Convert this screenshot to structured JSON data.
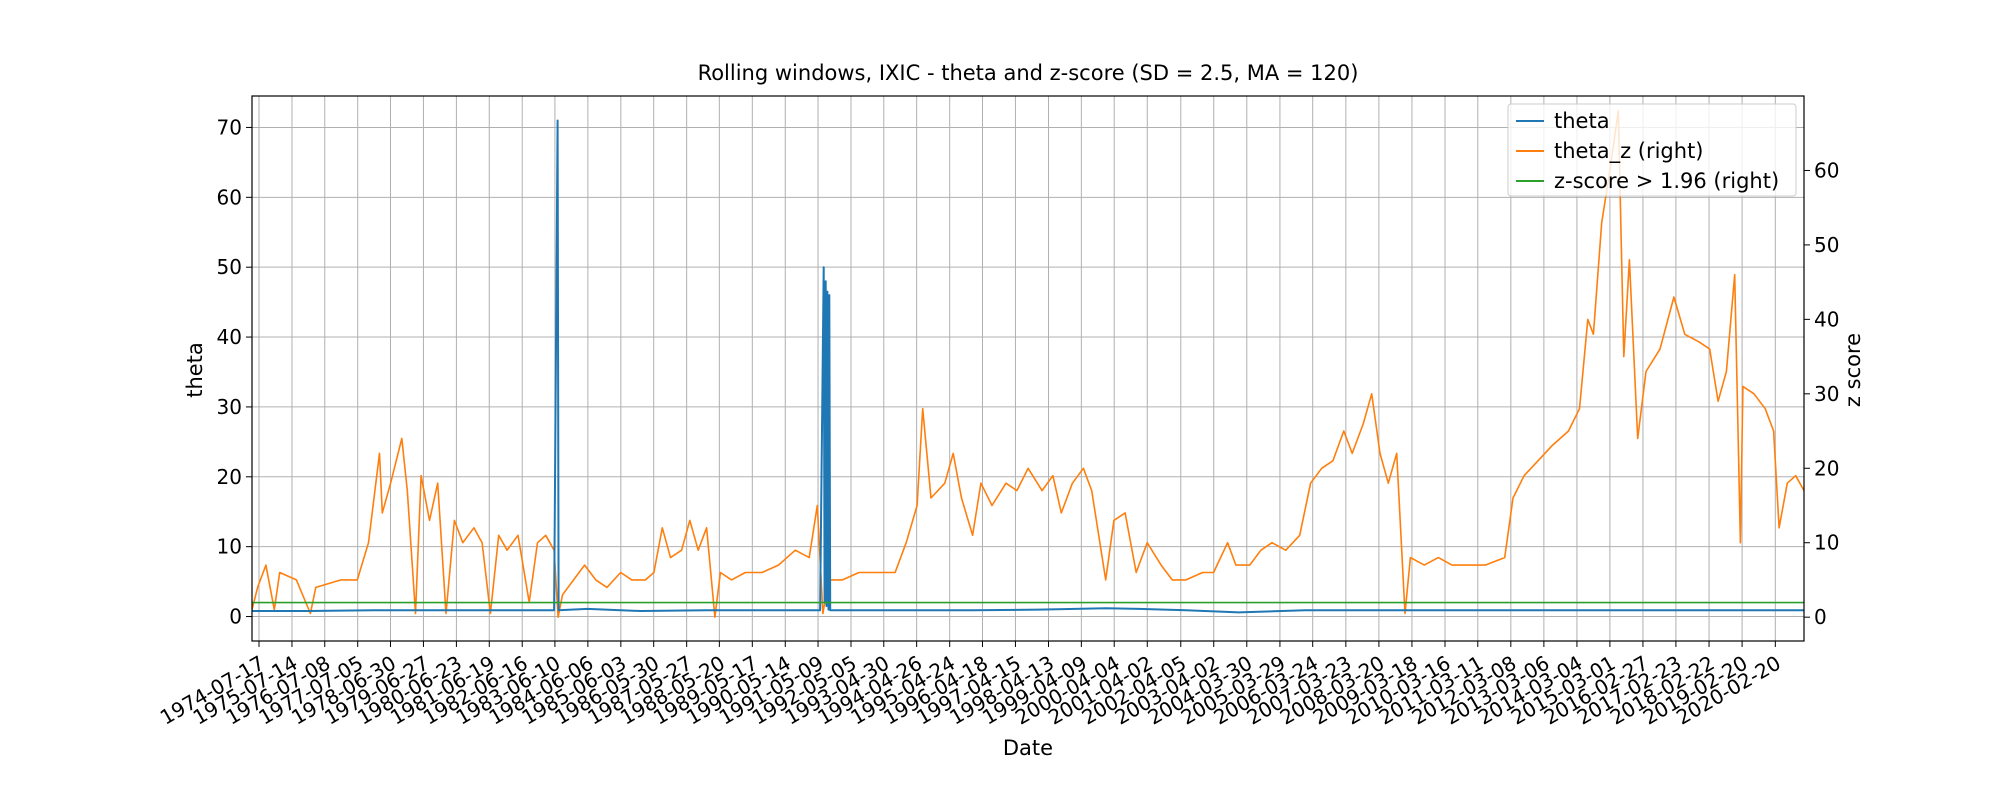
{
  "chart_data": {
    "type": "line",
    "title": "Rolling windows, IXIC - theta and z-score (SD = 2.5, MA = 120)",
    "xlabel": "Date",
    "ylabel": "theta",
    "y2label": "z score",
    "x_range": [
      "1974-05-01",
      "2020-12-31"
    ],
    "ylim": [
      -3.5,
      74.5
    ],
    "y2lim": [
      -3.2,
      70.0
    ],
    "yticks": [
      0,
      10,
      20,
      30,
      40,
      50,
      60,
      70
    ],
    "y2ticks": [
      0,
      10,
      20,
      30,
      40,
      50,
      60
    ],
    "xticks": [
      "1974-07-17",
      "1975-07-14",
      "1976-07-08",
      "1977-07-05",
      "1978-06-30",
      "1979-06-27",
      "1980-06-23",
      "1981-06-19",
      "1982-06-16",
      "1983-06-10",
      "1984-06-06",
      "1985-06-03",
      "1986-05-30",
      "1987-05-27",
      "1988-05-20",
      "1989-05-17",
      "1990-05-14",
      "1991-05-09",
      "1992-05-05",
      "1993-04-30",
      "1994-04-26",
      "1995-04-24",
      "1996-04-18",
      "1997-04-15",
      "1998-04-13",
      "1999-04-09",
      "2000-04-04",
      "2001-04-02",
      "2002-04-05",
      "2003-04-02",
      "2004-03-30",
      "2005-03-29",
      "2006-03-24",
      "2007-03-23",
      "2008-03-20",
      "2009-03-18",
      "2010-03-16",
      "2011-03-11",
      "2012-03-08",
      "2013-03-06",
      "2014-03-04",
      "2015-03-01",
      "2016-02-27",
      "2017-02-23",
      "2018-02-22",
      "2019-02-20",
      "2020-02-20"
    ],
    "grid": true,
    "legend_position": "top-right",
    "series": [
      {
        "name": "theta",
        "axis": "left",
        "color": "#1f77b4",
        "points": [
          [
            "1974-05-01",
            0.8
          ],
          [
            "1976-01-01",
            0.8
          ],
          [
            "1978-01-01",
            0.9
          ],
          [
            "1980-01-01",
            0.9
          ],
          [
            "1982-06-01",
            0.9
          ],
          [
            "1983-06-01",
            0.9
          ],
          [
            "1983-07-10",
            71.0
          ],
          [
            "1983-07-20",
            0.9
          ],
          [
            "1984-06-01",
            1.1
          ],
          [
            "1986-01-01",
            0.8
          ],
          [
            "1988-01-01",
            0.9
          ],
          [
            "1990-06-01",
            0.9
          ],
          [
            "1991-06-01",
            0.9
          ],
          [
            "1991-07-10",
            50.0
          ],
          [
            "1991-07-20",
            2.0
          ],
          [
            "1991-08-01",
            48.0
          ],
          [
            "1991-08-10",
            1.5
          ],
          [
            "1991-08-20",
            46.5
          ],
          [
            "1991-09-01",
            1.0
          ],
          [
            "1991-09-10",
            46.0
          ],
          [
            "1991-09-20",
            0.9
          ],
          [
            "1994-01-01",
            0.9
          ],
          [
            "1996-01-01",
            0.9
          ],
          [
            "1998-01-01",
            1.0
          ],
          [
            "2000-01-01",
            1.2
          ],
          [
            "2001-01-01",
            1.1
          ],
          [
            "2002-06-01",
            0.9
          ],
          [
            "2004-01-01",
            0.6
          ],
          [
            "2006-01-01",
            0.9
          ],
          [
            "2008-01-01",
            0.9
          ],
          [
            "2010-01-01",
            0.9
          ],
          [
            "2014-01-01",
            0.9
          ],
          [
            "2017-01-01",
            0.9
          ],
          [
            "2020-12-31",
            0.9
          ]
        ]
      },
      {
        "name": "theta_z (right)",
        "axis": "right",
        "color": "#ff7f0e",
        "points": [
          [
            "1974-05-01",
            1
          ],
          [
            "1974-07-01",
            4
          ],
          [
            "1974-10-01",
            7
          ],
          [
            "1975-01-01",
            1
          ],
          [
            "1975-03-01",
            6
          ],
          [
            "1975-09-01",
            5
          ],
          [
            "1976-02-01",
            0.5
          ],
          [
            "1976-04-01",
            4
          ],
          [
            "1977-01-01",
            5
          ],
          [
            "1977-07-01",
            5
          ],
          [
            "1977-11-01",
            10
          ],
          [
            "1978-03-01",
            22
          ],
          [
            "1978-04-01",
            14
          ],
          [
            "1978-07-01",
            18
          ],
          [
            "1978-11-01",
            24
          ],
          [
            "1979-01-01",
            17
          ],
          [
            "1979-04-01",
            0.5
          ],
          [
            "1979-06-01",
            19
          ],
          [
            "1979-09-01",
            13
          ],
          [
            "1979-12-01",
            18
          ],
          [
            "1980-03-01",
            0.5
          ],
          [
            "1980-06-01",
            13
          ],
          [
            "1980-09-01",
            10
          ],
          [
            "1981-01-01",
            12
          ],
          [
            "1981-04-01",
            10
          ],
          [
            "1981-07-01",
            0.5
          ],
          [
            "1981-10-01",
            11
          ],
          [
            "1982-01-01",
            9
          ],
          [
            "1982-05-01",
            11
          ],
          [
            "1982-09-01",
            2
          ],
          [
            "1982-12-01",
            10
          ],
          [
            "1983-03-01",
            11
          ],
          [
            "1983-06-01",
            9
          ],
          [
            "1983-07-15",
            0
          ],
          [
            "1983-09-01",
            3
          ],
          [
            "1984-01-01",
            5
          ],
          [
            "1984-05-01",
            7
          ],
          [
            "1984-09-01",
            5
          ],
          [
            "1985-01-01",
            4
          ],
          [
            "1985-06-01",
            6
          ],
          [
            "1985-10-01",
            5
          ],
          [
            "1986-03-01",
            5
          ],
          [
            "1986-06-01",
            6
          ],
          [
            "1986-09-01",
            12
          ],
          [
            "1986-12-01",
            8
          ],
          [
            "1987-04-01",
            9
          ],
          [
            "1987-07-01",
            13
          ],
          [
            "1987-10-01",
            9
          ],
          [
            "1988-01-01",
            12
          ],
          [
            "1988-04-01",
            0
          ],
          [
            "1988-06-01",
            6
          ],
          [
            "1988-10-01",
            5
          ],
          [
            "1989-03-01",
            6
          ],
          [
            "1989-09-01",
            6
          ],
          [
            "1990-03-01",
            7
          ],
          [
            "1990-09-01",
            9
          ],
          [
            "1991-02-01",
            8
          ],
          [
            "1991-05-01",
            15
          ],
          [
            "1991-07-01",
            0.5
          ],
          [
            "1991-09-01",
            5
          ],
          [
            "1992-02-01",
            5
          ],
          [
            "1992-08-01",
            6
          ],
          [
            "1993-03-01",
            6
          ],
          [
            "1993-09-01",
            6
          ],
          [
            "1994-01-01",
            10
          ],
          [
            "1994-05-01",
            15
          ],
          [
            "1994-07-01",
            28
          ],
          [
            "1994-10-01",
            16
          ],
          [
            "1995-03-01",
            18
          ],
          [
            "1995-06-01",
            22
          ],
          [
            "1995-09-01",
            16
          ],
          [
            "1996-01-01",
            11
          ],
          [
            "1996-04-01",
            18
          ],
          [
            "1996-08-01",
            15
          ],
          [
            "1997-01-01",
            18
          ],
          [
            "1997-05-01",
            17
          ],
          [
            "1997-09-01",
            20
          ],
          [
            "1998-02-01",
            17
          ],
          [
            "1998-06-01",
            19
          ],
          [
            "1998-09-01",
            14
          ],
          [
            "1999-01-01",
            18
          ],
          [
            "1999-05-01",
            20
          ],
          [
            "1999-08-01",
            17
          ],
          [
            "2000-01-01",
            5
          ],
          [
            "2000-04-01",
            13
          ],
          [
            "2000-08-01",
            14
          ],
          [
            "2000-12-01",
            6
          ],
          [
            "2001-04-01",
            10
          ],
          [
            "2001-09-01",
            7
          ],
          [
            "2002-01-01",
            5
          ],
          [
            "2002-06-01",
            5
          ],
          [
            "2002-12-01",
            6
          ],
          [
            "2003-04-01",
            6
          ],
          [
            "2003-09-01",
            10
          ],
          [
            "2003-12-01",
            7
          ],
          [
            "2004-05-01",
            7
          ],
          [
            "2004-09-01",
            9
          ],
          [
            "2005-01-01",
            10
          ],
          [
            "2005-06-01",
            9
          ],
          [
            "2005-11-01",
            11
          ],
          [
            "2006-03-01",
            18
          ],
          [
            "2006-07-01",
            20
          ],
          [
            "2006-11-01",
            21
          ],
          [
            "2007-03-01",
            25
          ],
          [
            "2007-06-01",
            22
          ],
          [
            "2007-10-01",
            26
          ],
          [
            "2008-01-01",
            30
          ],
          [
            "2008-04-01",
            22
          ],
          [
            "2008-07-01",
            18
          ],
          [
            "2008-10-01",
            22
          ],
          [
            "2009-01-01",
            0.5
          ],
          [
            "2009-03-01",
            8
          ],
          [
            "2009-08-01",
            7
          ],
          [
            "2010-01-01",
            8
          ],
          [
            "2010-06-01",
            7
          ],
          [
            "2011-01-01",
            7
          ],
          [
            "2011-06-01",
            7
          ],
          [
            "2012-01-01",
            8
          ],
          [
            "2012-04-01",
            16
          ],
          [
            "2012-08-01",
            19
          ],
          [
            "2013-01-01",
            21
          ],
          [
            "2013-06-01",
            23
          ],
          [
            "2013-12-01",
            25
          ],
          [
            "2014-04-01",
            28
          ],
          [
            "2014-07-01",
            40
          ],
          [
            "2014-09-01",
            38
          ],
          [
            "2014-12-01",
            53
          ],
          [
            "2015-03-01",
            60
          ],
          [
            "2015-06-01",
            68
          ],
          [
            "2015-08-01",
            35
          ],
          [
            "2015-10-01",
            48
          ],
          [
            "2016-01-01",
            24
          ],
          [
            "2016-04-01",
            33
          ],
          [
            "2016-09-01",
            36
          ],
          [
            "2017-02-01",
            43
          ],
          [
            "2017-06-01",
            38
          ],
          [
            "2017-11-01",
            37
          ],
          [
            "2018-03-01",
            36
          ],
          [
            "2018-06-01",
            29
          ],
          [
            "2018-09-01",
            33
          ],
          [
            "2018-12-01",
            46
          ],
          [
            "2019-02-01",
            10
          ],
          [
            "2019-03-01",
            31
          ],
          [
            "2019-07-01",
            30
          ],
          [
            "2019-11-01",
            28
          ],
          [
            "2020-02-01",
            25
          ],
          [
            "2020-04-01",
            12
          ],
          [
            "2020-07-01",
            18
          ],
          [
            "2020-10-01",
            19
          ],
          [
            "2020-12-31",
            17
          ]
        ]
      },
      {
        "name": "z-score > 1.96 (right)",
        "axis": "right",
        "color": "#2ca02c",
        "points": [
          [
            "1974-05-01",
            1.96
          ],
          [
            "2020-12-31",
            1.96
          ]
        ]
      }
    ]
  }
}
